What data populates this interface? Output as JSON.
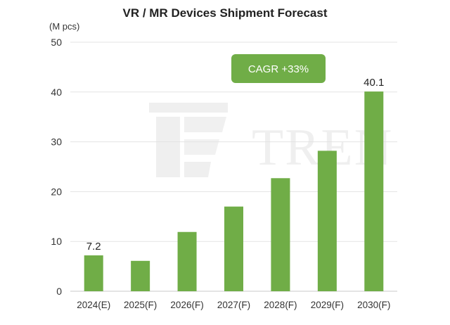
{
  "chart_data": {
    "type": "bar",
    "title": "VR / MR Devices Shipment Forecast",
    "ylabel": "(M pcs)",
    "xlabel": "",
    "categories": [
      "2024(E)",
      "2025(F)",
      "2026(F)",
      "2027(F)",
      "2028(F)",
      "2029(F)",
      "2030(F)"
    ],
    "values": [
      7.2,
      6.1,
      11.9,
      17.0,
      22.7,
      28.2,
      40.1
    ],
    "data_labels": [
      {
        "index": 0,
        "text": "7.2"
      },
      {
        "index": 6,
        "text": "40.1"
      }
    ],
    "ylim": [
      0,
      50
    ],
    "yticks": [
      0,
      10,
      20,
      30,
      40,
      50
    ],
    "grid": true,
    "legend": "none",
    "bar_color": "#70ad47",
    "annotation": {
      "text": "CAGR +33%",
      "color": "#70ad47"
    }
  },
  "watermark": {
    "text": "TREN"
  }
}
